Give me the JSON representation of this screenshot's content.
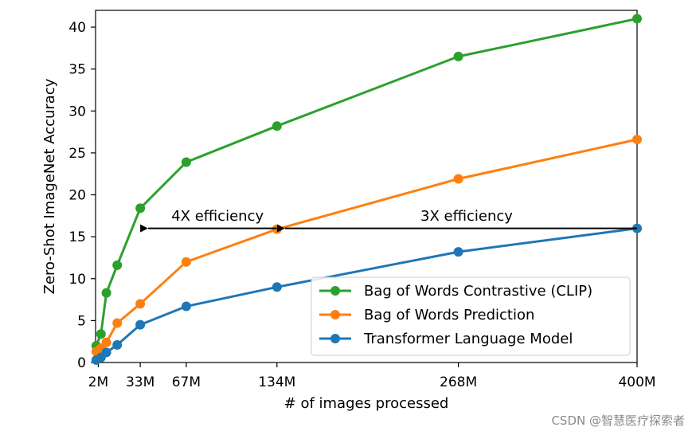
{
  "chart_data": {
    "type": "line",
    "title": "",
    "xlabel": "# of images processed",
    "ylabel": "Zero-Shot ImageNet Accuracy",
    "xlim": [
      0,
      400
    ],
    "ylim": [
      0,
      42
    ],
    "xticks": [
      {
        "value": 2,
        "label": "2M"
      },
      {
        "value": 33,
        "label": "33M"
      },
      {
        "value": 67,
        "label": "67M"
      },
      {
        "value": 134,
        "label": "134M"
      },
      {
        "value": 268,
        "label": "268M"
      },
      {
        "value": 400,
        "label": "400M"
      }
    ],
    "yticks": [
      0,
      5,
      10,
      15,
      20,
      25,
      30,
      35,
      40
    ],
    "grid": false,
    "legend_position": "lower-right",
    "series": [
      {
        "name": "Bag of Words Contrastive (CLIP)",
        "color": "#2ca02c",
        "points": [
          [
            0.5,
            2.0
          ],
          [
            4,
            3.4
          ],
          [
            8,
            8.3
          ],
          [
            16,
            11.6
          ],
          [
            33,
            18.4
          ],
          [
            67,
            23.9
          ],
          [
            134,
            28.2
          ],
          [
            268,
            36.5
          ],
          [
            400,
            41.0
          ]
        ]
      },
      {
        "name": "Bag of Words Prediction",
        "color": "#ff7f0e",
        "points": [
          [
            0.5,
            1.3
          ],
          [
            4,
            1.7
          ],
          [
            8,
            2.4
          ],
          [
            16,
            4.7
          ],
          [
            33,
            7.0
          ],
          [
            67,
            12.0
          ],
          [
            134,
            15.9
          ],
          [
            268,
            21.9
          ],
          [
            400,
            26.6
          ]
        ]
      },
      {
        "name": "Transformer Language Model",
        "color": "#1f77b4",
        "points": [
          [
            0.5,
            0.3
          ],
          [
            4,
            0.6
          ],
          [
            8,
            1.2
          ],
          [
            16,
            2.1
          ],
          [
            33,
            4.5
          ],
          [
            67,
            6.7
          ],
          [
            134,
            9.0
          ],
          [
            268,
            13.2
          ],
          [
            400,
            16.0
          ]
        ]
      }
    ],
    "annotations": [
      {
        "text": "4X efficiency",
        "x": 56,
        "y": 16.9,
        "arrow_from": [
          134,
          16.0
        ],
        "arrow_to": [
          33,
          16.0
        ]
      },
      {
        "text": "3X efficiency",
        "x": 240,
        "y": 16.9,
        "arrow_from": [
          400,
          16.0
        ],
        "arrow_to": [
          134,
          16.0
        ]
      }
    ]
  },
  "watermark": "CSDN @智慧医疗探索者"
}
